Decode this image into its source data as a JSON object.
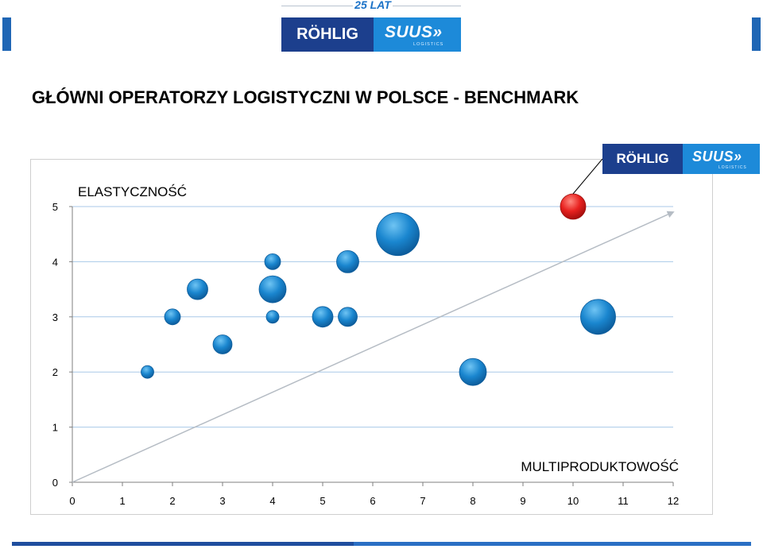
{
  "header": {
    "anniversary": "25 LAT",
    "logo_left": "RÖHLIG",
    "logo_right": "SUUS»",
    "logo_right_sub": "LOGISTICS"
  },
  "page_title": "GŁÓWNI OPERATORZY LOGISTYCZNI W POLSCE - BENCHMARK",
  "chart_logo": {
    "left": "RÖHLIG",
    "right": "SUUS»",
    "right_sub": "LOGISTICS"
  },
  "colors": {
    "accent_dark": "#1c3f8d",
    "accent_light": "#1d8ad9",
    "bubble": "#1a86cf",
    "highlight": "#e8211f",
    "trend_line": "#b5bcc4"
  },
  "chart_data": {
    "type": "bubble",
    "title": "",
    "xlabel": "MULTIPRODUKTOWOŚĆ",
    "ylabel": "ELASTYCZNOŚĆ",
    "xlim": [
      0,
      12
    ],
    "ylim": [
      0,
      5
    ],
    "xticks": [
      "0",
      "1",
      "2",
      "3",
      "4",
      "5",
      "6",
      "7",
      "8",
      "9",
      "10",
      "11",
      "12"
    ],
    "yticks": [
      "0",
      "1",
      "2",
      "3",
      "4",
      "5"
    ],
    "grid": "horizontal",
    "series": [
      {
        "points": [
          {
            "x": 1.5,
            "y": 2.0,
            "size": 8
          },
          {
            "x": 2.0,
            "y": 3.0,
            "size": 10
          },
          {
            "x": 2.5,
            "y": 3.5,
            "size": 13
          },
          {
            "x": 3.0,
            "y": 2.5,
            "size": 12
          },
          {
            "x": 4.0,
            "y": 4.0,
            "size": 10
          },
          {
            "x": 4.0,
            "y": 3.5,
            "size": 17
          },
          {
            "x": 4.0,
            "y": 3.0,
            "size": 8
          },
          {
            "x": 5.0,
            "y": 3.0,
            "size": 13
          },
          {
            "x": 5.5,
            "y": 4.0,
            "size": 14
          },
          {
            "x": 5.5,
            "y": 3.0,
            "size": 12
          },
          {
            "x": 6.5,
            "y": 4.5,
            "size": 27
          },
          {
            "x": 8.0,
            "y": 2.0,
            "size": 17
          },
          {
            "x": 10.5,
            "y": 3.0,
            "size": 22
          }
        ]
      },
      {
        "highlight": true,
        "points": [
          {
            "x": 10.0,
            "y": 5.0,
            "size": 16
          }
        ]
      }
    ],
    "trend_line": {
      "from": [
        0,
        0
      ],
      "to": [
        12,
        4.9
      ]
    }
  }
}
